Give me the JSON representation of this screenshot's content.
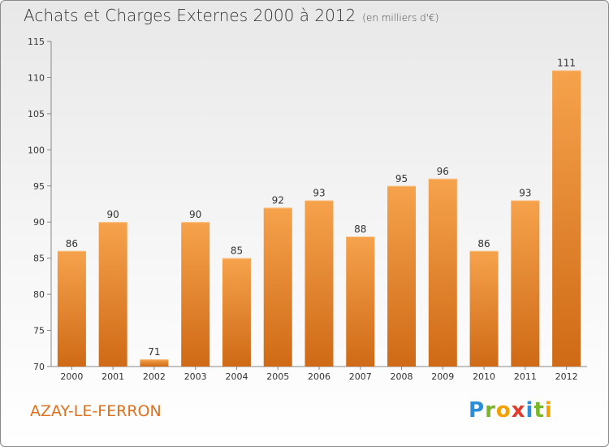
{
  "header": {
    "title": "Achats et Charges Externes 2000 à 2012",
    "subtitle": "(en milliers d'€)"
  },
  "footer": {
    "city": "AZAY-LE-FERRON",
    "logo_text": "Proxiti"
  },
  "colors": {
    "bar_top": "#f6a24c",
    "bar_bottom": "#cf6a16",
    "city": "#e0701c"
  },
  "chart_data": {
    "type": "bar",
    "categories": [
      "2000",
      "2001",
      "2002",
      "2003",
      "2004",
      "2005",
      "2006",
      "2007",
      "2008",
      "2009",
      "2010",
      "2011",
      "2012"
    ],
    "values": [
      86,
      90,
      71,
      90,
      85,
      92,
      93,
      88,
      95,
      96,
      86,
      93,
      111
    ],
    "title": "Achats et Charges Externes 2000 à 2012",
    "subtitle": "(en milliers d'€)",
    "xlabel": "",
    "ylabel": "",
    "ylim": [
      70,
      115
    ],
    "yticks": [
      70,
      75,
      80,
      85,
      90,
      95,
      100,
      105,
      110,
      115
    ],
    "grid": false,
    "legend": "none"
  }
}
